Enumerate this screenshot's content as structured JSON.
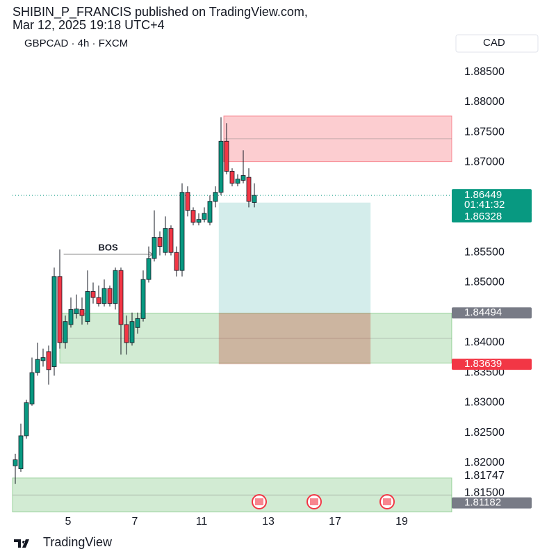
{
  "header": {
    "line1": "SHIBIN_P_FRANCIS published on TradingView.com,",
    "line2": "Mar 12, 2025 19:18 UTC+4"
  },
  "chart_data": {
    "type": "candlestick",
    "title": "GBPCAD · 4h · FXCM",
    "currency": "CAD",
    "categories": [
      null,
      null,
      null,
      null,
      null,
      null,
      null,
      null,
      null,
      null,
      "5",
      null,
      null,
      null,
      null,
      null,
      null,
      null,
      null,
      null,
      null,
      null,
      "7",
      null,
      null,
      null,
      null,
      null,
      null,
      null,
      null,
      null,
      null,
      null,
      "11",
      null,
      null,
      null,
      null,
      null,
      null,
      null,
      null,
      null,
      null,
      null,
      "13",
      null,
      null,
      null,
      null,
      null,
      null,
      null,
      null,
      null,
      null,
      null,
      "17",
      null,
      null,
      null,
      null,
      null,
      null,
      null,
      null,
      null,
      null,
      null,
      "19",
      null,
      null,
      null,
      null,
      null,
      null,
      null,
      null
    ],
    "open": [
      1.8195,
      1.819,
      1.8245,
      1.8298,
      1.835,
      1.837,
      1.8385,
      1.836,
      1.851,
      1.84,
      1.843,
      1.8448,
      1.8455,
      1.8435,
      1.8485,
      1.8475,
      1.8465,
      1.849,
      1.8465,
      1.852,
      1.843,
      1.84,
      1.8425,
      1.844,
      1.8505,
      1.854,
      1.8575,
      1.855,
      1.859,
      1.855,
      1.852,
      1.865,
      1.862,
      1.86,
      1.8605,
      1.86,
      1.8635,
      1.865,
      1.8735,
      1.8685,
      1.8665,
      1.867,
      1.8675,
      1.8633,
      null,
      null,
      null,
      null,
      null,
      null,
      null,
      null,
      null,
      null,
      null,
      null,
      null,
      null,
      null,
      null,
      null,
      null,
      null,
      null,
      null,
      null,
      null,
      null,
      null,
      null,
      null,
      null,
      null,
      null,
      null,
      null,
      null,
      null,
      null
    ],
    "high": [
      1.8215,
      1.8265,
      1.8305,
      1.8375,
      1.84,
      1.839,
      1.8395,
      1.8525,
      1.8555,
      1.8445,
      1.8475,
      1.848,
      1.8475,
      1.852,
      1.85,
      1.8495,
      1.8505,
      1.8495,
      1.8525,
      1.8525,
      1.8445,
      1.845,
      1.845,
      1.852,
      1.856,
      1.862,
      1.8585,
      1.861,
      1.8595,
      1.856,
      1.8665,
      1.866,
      1.8625,
      1.8615,
      1.8625,
      1.8645,
      1.866,
      1.8775,
      1.8765,
      1.869,
      1.868,
      1.872,
      1.869,
      1.8665,
      null,
      null,
      null,
      null,
      null,
      null,
      null,
      null,
      null,
      null,
      null,
      null,
      null,
      null,
      null,
      null,
      null,
      null,
      null,
      null,
      null,
      null,
      null,
      null,
      null,
      null,
      null,
      null,
      null,
      null,
      null,
      null,
      null,
      null,
      null
    ],
    "low": [
      1.8165,
      1.8185,
      1.824,
      1.8295,
      1.8345,
      1.836,
      1.833,
      1.8345,
      1.839,
      1.839,
      1.8425,
      1.844,
      1.843,
      1.843,
      1.8465,
      1.846,
      1.846,
      1.846,
      1.8455,
      1.838,
      1.838,
      1.8395,
      1.8415,
      1.8435,
      1.85,
      1.8535,
      1.8545,
      1.8545,
      1.8545,
      1.851,
      1.851,
      1.861,
      1.8595,
      1.8595,
      1.86,
      1.8595,
      1.8625,
      1.8645,
      1.868,
      1.866,
      1.866,
      1.8665,
      1.8625,
      1.8625,
      null,
      null,
      null,
      null,
      null,
      null,
      null,
      null,
      null,
      null,
      null,
      null,
      null,
      null,
      null,
      null,
      null,
      null,
      null,
      null,
      null,
      null,
      null,
      null,
      null,
      null,
      null,
      null,
      null,
      null,
      null,
      null,
      null,
      null,
      null
    ],
    "close": [
      1.8205,
      1.8245,
      1.83,
      1.835,
      1.8372,
      1.8375,
      1.8355,
      1.851,
      1.84,
      1.8435,
      1.8455,
      1.8456,
      1.8445,
      1.8485,
      1.8475,
      1.8465,
      1.849,
      1.8465,
      1.852,
      1.843,
      1.84,
      1.8435,
      1.844,
      1.8505,
      1.854,
      1.8575,
      1.856,
      1.859,
      1.855,
      1.852,
      1.865,
      1.862,
      1.86,
      1.8605,
      1.8615,
      1.8635,
      1.865,
      1.8735,
      1.8685,
      1.8665,
      1.8672,
      1.8678,
      1.8635,
      1.8645,
      null,
      null,
      null,
      null,
      null,
      null,
      null,
      null,
      null,
      null,
      null,
      null,
      null,
      null,
      null,
      null,
      null,
      null,
      null,
      null,
      null,
      null,
      null,
      null,
      null,
      null,
      null,
      null,
      null,
      null,
      null,
      null,
      null,
      null,
      null
    ],
    "up_color": "#089981",
    "down_color": "#f23645",
    "ylim": [
      1.8112,
      1.88775
    ],
    "yticks": [
      {
        "value": 1.815,
        "label": "1.81500"
      },
      {
        "value": 1.82,
        "label": "1.82000"
      },
      {
        "value": 1.825,
        "label": "1.82500"
      },
      {
        "value": 1.83,
        "label": "1.83000"
      },
      {
        "value": 1.835,
        "label": "1.83500"
      },
      {
        "value": 1.84,
        "label": "1.84000"
      },
      {
        "value": 1.85,
        "label": "1.85000"
      },
      {
        "value": 1.855,
        "label": "1.85500"
      },
      {
        "value": 1.87,
        "label": "1.87000"
      },
      {
        "value": 1.875,
        "label": "1.87500"
      },
      {
        "value": 1.88,
        "label": "1.88000"
      },
      {
        "value": 1.885,
        "label": "1.88500"
      }
    ],
    "last_price": 1.86449,
    "countdown": "01:41:32",
    "zones": [
      {
        "low": 1.8701,
        "high": 1.8777,
        "color": "#f23645"
      },
      {
        "low": 1.8366,
        "high": 1.8449,
        "color": "#4caf50"
      },
      {
        "low": 1.81182,
        "high": 1.81747,
        "color": "#4caf50"
      }
    ],
    "position": {
      "target": 1.86328,
      "entry": 1.84494,
      "stop": 1.83639
    },
    "annotation": {
      "text": "BOS",
      "value": 1.8547
    }
  },
  "footer": {
    "brand": "TradingView"
  }
}
